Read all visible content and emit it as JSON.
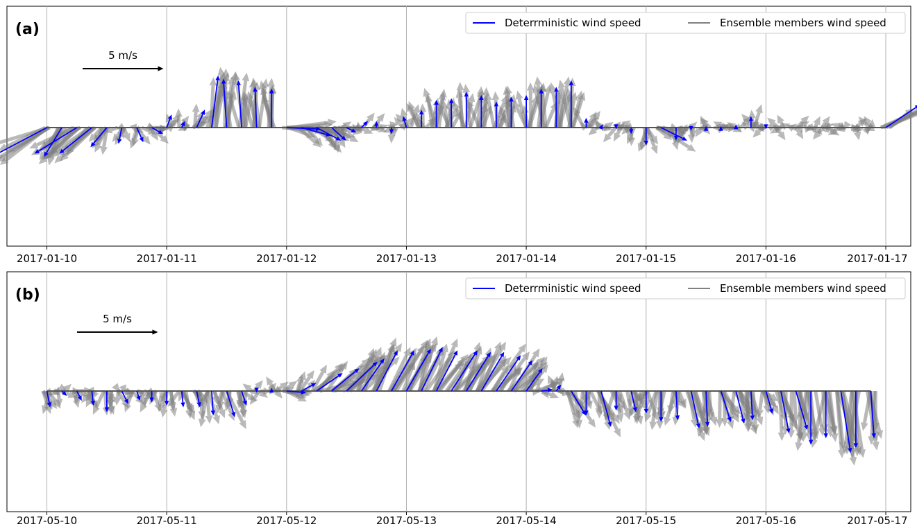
{
  "chart_data": [
    {
      "type": "quiver",
      "panel_label": "(a)",
      "scale_label": "5 m/s",
      "x_tick_labels": [
        "2017-01-10",
        "2017-01-11",
        "2017-01-12",
        "2017-01-13",
        "2017-01-14",
        "2017-01-15",
        "2017-01-16",
        "2017-01-17"
      ],
      "xlim": [
        "2017-01-09T16:00",
        "2017-01-17T05:00"
      ],
      "legend": [
        "Deterrministic wind speed",
        "Ensemble members wind speed"
      ],
      "legend_location": "top-right",
      "grid": "vertical",
      "colors": {
        "deterministic": "#0000ff",
        "ensemble": "#808080"
      },
      "ensemble_members_shown": 6,
      "deterministic": {
        "times": [
          "2017-01-10T00:00",
          "2017-01-10T03:00",
          "2017-01-10T06:00",
          "2017-01-10T09:00",
          "2017-01-10T12:00",
          "2017-01-10T15:00",
          "2017-01-10T18:00",
          "2017-01-10T21:00",
          "2017-01-11T00:00",
          "2017-01-11T03:00",
          "2017-01-11T06:00",
          "2017-01-11T09:00",
          "2017-01-11T12:00",
          "2017-01-11T15:00",
          "2017-01-11T18:00",
          "2017-01-11T21:00",
          "2017-01-12T00:00",
          "2017-01-12T03:00",
          "2017-01-12T06:00",
          "2017-01-12T09:00",
          "2017-01-12T12:00",
          "2017-01-12T15:00",
          "2017-01-12T18:00",
          "2017-01-12T21:00",
          "2017-01-13T00:00",
          "2017-01-13T03:00",
          "2017-01-13T06:00",
          "2017-01-13T09:00",
          "2017-01-13T12:00",
          "2017-01-13T15:00",
          "2017-01-13T18:00",
          "2017-01-13T21:00",
          "2017-01-14T00:00",
          "2017-01-14T03:00",
          "2017-01-14T06:00",
          "2017-01-14T09:00",
          "2017-01-14T12:00",
          "2017-01-14T15:00",
          "2017-01-14T18:00",
          "2017-01-14T21:00",
          "2017-01-15T00:00",
          "2017-01-15T03:00",
          "2017-01-15T06:00",
          "2017-01-15T09:00",
          "2017-01-15T12:00",
          "2017-01-15T15:00",
          "2017-01-15T18:00",
          "2017-01-15T21:00",
          "2017-01-16T00:00",
          "2017-01-16T03:00",
          "2017-01-16T06:00",
          "2017-01-16T09:00",
          "2017-01-16T12:00",
          "2017-01-16T15:00",
          "2017-01-16T18:00",
          "2017-01-16T21:00",
          "2017-01-17T00:00"
        ],
        "u": [
          -3.4,
          -1.1,
          -2.6,
          -2.0,
          -1.0,
          -0.2,
          0.4,
          0.7,
          0.3,
          0.2,
          0.5,
          0.4,
          -0.2,
          -0.2,
          -0.1,
          0.0,
          2.1,
          1.8,
          1.5,
          0.9,
          0.6,
          0.4,
          0.0,
          0.0,
          -0.2,
          0.0,
          0.0,
          0.0,
          0.0,
          0.0,
          0.0,
          0.0,
          0.0,
          0.0,
          0.0,
          0.0,
          0.0,
          0.1,
          0.0,
          0.0,
          0.0,
          1.6,
          0.0,
          0.0,
          0.0,
          0.0,
          0.0,
          0.0,
          0.0,
          0.0,
          0.0,
          0.0,
          0.0,
          0.0,
          0.0,
          0.0,
          2.1
        ],
        "v": [
          -1.8,
          -1.8,
          -1.6,
          -1.6,
          -1.2,
          -1.0,
          -0.9,
          -0.4,
          0.8,
          0.4,
          1.1,
          3.2,
          3.0,
          2.9,
          2.5,
          2.4,
          -0.1,
          -0.5,
          -0.8,
          -0.8,
          -0.3,
          0.4,
          0.4,
          -0.4,
          0.7,
          1.1,
          1.7,
          1.8,
          2.2,
          2.0,
          1.6,
          1.9,
          2.0,
          2.4,
          2.5,
          2.9,
          0.6,
          0.2,
          -0.1,
          -0.4,
          -1.1,
          -0.8,
          -0.8,
          -0.2,
          0.1,
          0.1,
          0.2,
          0.7,
          -0.1,
          0.0,
          0.0,
          0.0,
          0.0,
          0.0,
          0.0,
          0.0,
          1.4
        ]
      }
    },
    {
      "type": "quiver",
      "panel_label": "(b)",
      "scale_label": "5 m/s",
      "x_tick_labels": [
        "2017-05-10",
        "2017-05-11",
        "2017-05-12",
        "2017-05-13",
        "2017-05-14",
        "2017-05-15",
        "2017-05-16",
        "2017-05-17"
      ],
      "xlim": [
        "2017-05-09T16:00",
        "2017-05-17T05:00"
      ],
      "legend": [
        "Deterrministic wind speed",
        "Ensemble members wind speed"
      ],
      "legend_location": "top-right",
      "grid": "vertical",
      "colors": {
        "deterministic": "#0000ff",
        "ensemble": "#808080"
      },
      "ensemble_members_shown": 6,
      "deterministic": {
        "times": [
          "2017-05-10T00:00",
          "2017-05-10T03:00",
          "2017-05-10T06:00",
          "2017-05-10T09:00",
          "2017-05-10T12:00",
          "2017-05-10T15:00",
          "2017-05-10T18:00",
          "2017-05-10T21:00",
          "2017-05-11T00:00",
          "2017-05-11T03:00",
          "2017-05-11T06:00",
          "2017-05-11T09:00",
          "2017-05-11T12:00",
          "2017-05-11T15:00",
          "2017-05-11T18:00",
          "2017-05-11T21:00",
          "2017-05-12T00:00",
          "2017-05-12T03:00",
          "2017-05-12T06:00",
          "2017-05-12T09:00",
          "2017-05-12T12:00",
          "2017-05-12T15:00",
          "2017-05-12T18:00",
          "2017-05-12T21:00",
          "2017-05-13T00:00",
          "2017-05-13T03:00",
          "2017-05-13T06:00",
          "2017-05-13T09:00",
          "2017-05-13T12:00",
          "2017-05-13T15:00",
          "2017-05-13T18:00",
          "2017-05-13T21:00",
          "2017-05-14T00:00",
          "2017-05-14T03:00",
          "2017-05-14T06:00",
          "2017-05-14T09:00",
          "2017-05-14T12:00",
          "2017-05-14T15:00",
          "2017-05-14T18:00",
          "2017-05-14T21:00",
          "2017-05-15T00:00",
          "2017-05-15T03:00",
          "2017-05-15T06:00",
          "2017-05-15T09:00",
          "2017-05-15T12:00",
          "2017-05-15T15:00",
          "2017-05-15T18:00",
          "2017-05-15T21:00",
          "2017-05-16T00:00",
          "2017-05-16T03:00",
          "2017-05-16T06:00",
          "2017-05-16T09:00",
          "2017-05-16T12:00",
          "2017-05-16T15:00",
          "2017-05-16T18:00",
          "2017-05-16T21:00"
        ],
        "u": [
          0.2,
          0.3,
          0.3,
          0.1,
          0.0,
          0.4,
          0.2,
          0.0,
          0.0,
          0.1,
          0.2,
          0.1,
          0.5,
          0.3,
          0.0,
          0.0,
          1.2,
          0.9,
          1.6,
          1.7,
          1.9,
          1.4,
          1.3,
          1.4,
          1.5,
          1.3,
          1.3,
          1.6,
          1.5,
          1.4,
          1.5,
          1.3,
          1.0,
          0.7,
          0.3,
          0.9,
          0.0,
          0.6,
          0.0,
          0.3,
          0.0,
          0.0,
          0.1,
          0.5,
          0.1,
          0.6,
          0.5,
          0.1,
          0.4,
          0.5,
          0.7,
          0.0,
          0.0,
          0.6,
          0.0,
          0.2
        ],
        "v": [
          -1.0,
          -0.3,
          -0.6,
          -0.9,
          -1.3,
          -0.8,
          -0.6,
          -0.7,
          -0.9,
          -1.0,
          -1.0,
          -1.5,
          -1.6,
          -0.9,
          -0.1,
          0.2,
          -0.1,
          0.5,
          1.1,
          1.4,
          1.8,
          2.0,
          2.5,
          2.5,
          2.6,
          2.7,
          2.5,
          2.5,
          2.4,
          2.4,
          2.2,
          1.9,
          1.4,
          0.1,
          0.4,
          -1.5,
          -1.5,
          -2.2,
          -1.2,
          -1.3,
          -1.4,
          -1.9,
          -1.8,
          -2.3,
          -2.2,
          -1.9,
          -2.0,
          -1.8,
          -1.4,
          -2.6,
          -2.4,
          -3.3,
          -2.9,
          -3.8,
          -3.5,
          -2.9
        ]
      }
    }
  ]
}
